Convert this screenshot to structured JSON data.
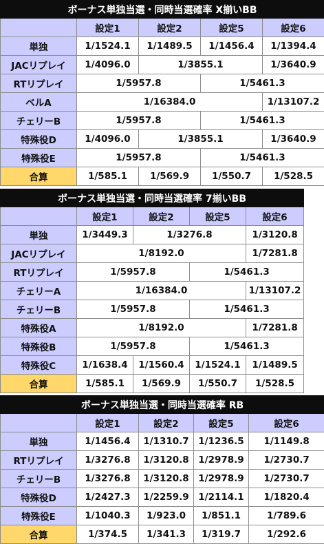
{
  "sections": [
    {
      "title": "ボーナス単独当選・同時当選確率 X揃いBB",
      "headers": [
        "設定1",
        "設定2",
        "設定5",
        "設定6"
      ],
      "rows": [
        {
          "label": "単独",
          "cells": [
            {
              "v": "1/1524.1",
              "s": 1
            },
            {
              "v": "1/1489.5",
              "s": 1
            },
            {
              "v": "1/1456.4",
              "s": 1
            },
            {
              "v": "1/1394.4",
              "s": 1
            }
          ]
        },
        {
          "label": "JACリプレイ",
          "cells": [
            {
              "v": "1/4096.0",
              "s": 1
            },
            {
              "v": "1/3855.1",
              "s": 2
            },
            {
              "v": "1/3640.9",
              "s": 1
            }
          ]
        },
        {
          "label": "RTリプレイ",
          "cells": [
            {
              "v": "1/5957.8",
              "s": 2
            },
            {
              "v": "1/5461.3",
              "s": 2
            }
          ]
        },
        {
          "label": "ベルA",
          "cells": [
            {
              "v": "1/16384.0",
              "s": 3
            },
            {
              "v": "1/13107.2",
              "s": 1
            }
          ]
        },
        {
          "label": "チェリーB",
          "cells": [
            {
              "v": "1/5957.8",
              "s": 2
            },
            {
              "v": "1/5461.3",
              "s": 2
            }
          ]
        },
        {
          "label": "特殊役D",
          "cells": [
            {
              "v": "1/4096.0",
              "s": 1
            },
            {
              "v": "1/3855.1",
              "s": 2
            },
            {
              "v": "1/3640.9",
              "s": 1
            }
          ]
        },
        {
          "label": "特殊役E",
          "cells": [
            {
              "v": "1/5957.8",
              "s": 2
            },
            {
              "v": "1/5461.3",
              "s": 2
            }
          ]
        },
        {
          "label": "合算",
          "sum": true,
          "cells": [
            {
              "v": "1/585.1",
              "s": 1
            },
            {
              "v": "1/569.9",
              "s": 1
            },
            {
              "v": "1/550.7",
              "s": 1
            },
            {
              "v": "1/528.5",
              "s": 1
            }
          ]
        }
      ]
    },
    {
      "title": "ボーナス単独当選・同時当選確率 7揃いBB",
      "headers": [
        "設定1",
        "設定2",
        "設定5",
        "設定6"
      ],
      "rows": [
        {
          "label": "単独",
          "cells": [
            {
              "v": "1/3449.3",
              "s": 1
            },
            {
              "v": "1/3276.8",
              "s": 2
            },
            {
              "v": "1/3120.8",
              "s": 1
            }
          ]
        },
        {
          "label": "JACリプレイ",
          "cells": [
            {
              "v": "1/8192.0",
              "s": 3
            },
            {
              "v": "1/7281.8",
              "s": 1
            }
          ]
        },
        {
          "label": "RTリプレイ",
          "cells": [
            {
              "v": "1/5957.8",
              "s": 2
            },
            {
              "v": "1/5461.3",
              "s": 2
            }
          ]
        },
        {
          "label": "チェリーA",
          "cells": [
            {
              "v": "1/16384.0",
              "s": 3
            },
            {
              "v": "1/13107.2",
              "s": 1
            }
          ]
        },
        {
          "label": "チェリーB",
          "cells": [
            {
              "v": "1/5957.8",
              "s": 2
            },
            {
              "v": "1/5461.3",
              "s": 2
            }
          ]
        },
        {
          "label": "特殊役A",
          "cells": [
            {
              "v": "1/8192.0",
              "s": 3
            },
            {
              "v": "1/7281.8",
              "s": 1
            }
          ]
        },
        {
          "label": "特殊役B",
          "cells": [
            {
              "v": "1/5957.8",
              "s": 2
            },
            {
              "v": "1/5461.3",
              "s": 2
            }
          ]
        },
        {
          "label": "特殊役C",
          "cells": [
            {
              "v": "1/1638.4",
              "s": 1
            },
            {
              "v": "1/1560.4",
              "s": 1
            },
            {
              "v": "1/1524.1",
              "s": 1
            },
            {
              "v": "1/1489.5",
              "s": 1
            }
          ]
        },
        {
          "label": "合算",
          "sum": true,
          "cells": [
            {
              "v": "1/585.1",
              "s": 1
            },
            {
              "v": "1/569.9",
              "s": 1
            },
            {
              "v": "1/550.7",
              "s": 1
            },
            {
              "v": "1/528.5",
              "s": 1
            }
          ]
        }
      ]
    },
    {
      "title": "ボーナス単独当選・同時当選確率 RB",
      "headers": [
        "設定1",
        "設定2",
        "設定5",
        "設定6"
      ],
      "rows": [
        {
          "label": "単独",
          "cells": [
            {
              "v": "1/1456.4",
              "s": 1
            },
            {
              "v": "1/1310.7",
              "s": 1
            },
            {
              "v": "1/1236.5",
              "s": 1
            },
            {
              "v": "1/1149.8",
              "s": 1
            }
          ]
        },
        {
          "label": "RTリプレイ",
          "cells": [
            {
              "v": "1/3276.8",
              "s": 1
            },
            {
              "v": "1/3120.8",
              "s": 1
            },
            {
              "v": "1/2978.9",
              "s": 1
            },
            {
              "v": "1/2730.7",
              "s": 1
            }
          ]
        },
        {
          "label": "チェリーB",
          "cells": [
            {
              "v": "1/3276.8",
              "s": 1
            },
            {
              "v": "1/3120.8",
              "s": 1
            },
            {
              "v": "1/2978.9",
              "s": 1
            },
            {
              "v": "1/2730.7",
              "s": 1
            }
          ]
        },
        {
          "label": "特殊役D",
          "cells": [
            {
              "v": "1/2427.3",
              "s": 1
            },
            {
              "v": "1/2259.9",
              "s": 1
            },
            {
              "v": "1/2114.1",
              "s": 1
            },
            {
              "v": "1/1820.4",
              "s": 1
            }
          ]
        },
        {
          "label": "特殊役E",
          "cells": [
            {
              "v": "1/1040.3",
              "s": 1
            },
            {
              "v": "1/923.0",
              "s": 1
            },
            {
              "v": "1/851.1",
              "s": 1
            },
            {
              "v": "1/789.6",
              "s": 1
            }
          ]
        },
        {
          "label": "合算",
          "sum": true,
          "cells": [
            {
              "v": "1/374.5",
              "s": 1
            },
            {
              "v": "1/341.3",
              "s": 1
            },
            {
              "v": "1/319.7",
              "s": 1
            },
            {
              "v": "1/292.6",
              "s": 1
            }
          ]
        }
      ]
    }
  ]
}
